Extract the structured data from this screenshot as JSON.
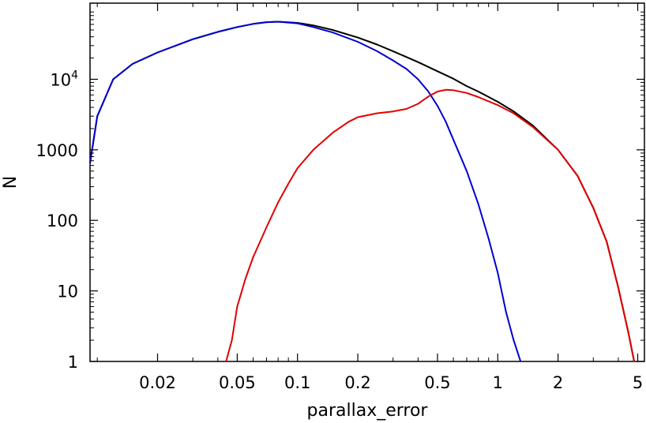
{
  "chart_data": {
    "type": "line",
    "xlabel": "parallax_error",
    "ylabel": "N",
    "xscale": "log",
    "yscale": "log",
    "xlim": [
      0.0092,
      5.4
    ],
    "ylim": [
      1,
      120000
    ],
    "grid": false,
    "legend": "none",
    "x_ticks": [
      {
        "value": 0.02,
        "label": "0.02"
      },
      {
        "value": 0.05,
        "label": "0.05"
      },
      {
        "value": 0.1,
        "label": "0.1"
      },
      {
        "value": 0.2,
        "label": "0.2"
      },
      {
        "value": 0.5,
        "label": "0.5"
      },
      {
        "value": 1,
        "label": "1"
      },
      {
        "value": 2,
        "label": "2"
      },
      {
        "value": 5,
        "label": "5"
      }
    ],
    "y_ticks": [
      {
        "value": 1,
        "label": "1"
      },
      {
        "value": 10,
        "label": "10"
      },
      {
        "value": 100,
        "label": "100"
      },
      {
        "value": 1000,
        "label": "1000"
      },
      {
        "value": 10000,
        "label": "10",
        "sup": "4"
      }
    ],
    "series": [
      {
        "color": "#000000",
        "points": [
          [
            0.0092,
            650
          ],
          [
            0.01,
            3000
          ],
          [
            0.012,
            10000
          ],
          [
            0.015,
            16500
          ],
          [
            0.02,
            24000
          ],
          [
            0.03,
            37000
          ],
          [
            0.04,
            47000
          ],
          [
            0.05,
            55000
          ],
          [
            0.06,
            61000
          ],
          [
            0.07,
            64500
          ],
          [
            0.08,
            65500
          ],
          [
            0.1,
            63000
          ],
          [
            0.12,
            58000
          ],
          [
            0.15,
            50000
          ],
          [
            0.2,
            39000
          ],
          [
            0.25,
            31000
          ],
          [
            0.3,
            25000
          ],
          [
            0.4,
            17500
          ],
          [
            0.5,
            13000
          ],
          [
            0.6,
            10200
          ],
          [
            0.7,
            8000
          ],
          [
            0.8,
            6700
          ],
          [
            1.0,
            4800
          ],
          [
            1.2,
            3500
          ],
          [
            1.5,
            2200
          ],
          [
            2.0,
            1000
          ],
          [
            2.5,
            430
          ],
          [
            3.0,
            150
          ],
          [
            3.5,
            50
          ],
          [
            4.0,
            11
          ],
          [
            4.5,
            2.5
          ],
          [
            4.8,
            1
          ]
        ]
      },
      {
        "color": "#0000d0",
        "points": [
          [
            0.0092,
            650
          ],
          [
            0.01,
            3000
          ],
          [
            0.012,
            10000
          ],
          [
            0.015,
            16500
          ],
          [
            0.02,
            24000
          ],
          [
            0.03,
            37000
          ],
          [
            0.04,
            47000
          ],
          [
            0.05,
            55000
          ],
          [
            0.06,
            61000
          ],
          [
            0.07,
            64500
          ],
          [
            0.08,
            65500
          ],
          [
            0.1,
            62000
          ],
          [
            0.12,
            55000
          ],
          [
            0.15,
            46000
          ],
          [
            0.2,
            34000
          ],
          [
            0.25,
            25000
          ],
          [
            0.3,
            18500
          ],
          [
            0.35,
            14000
          ],
          [
            0.4,
            10000
          ],
          [
            0.45,
            6700
          ],
          [
            0.5,
            4200
          ],
          [
            0.55,
            2500
          ],
          [
            0.6,
            1400
          ],
          [
            0.7,
            500
          ],
          [
            0.8,
            170
          ],
          [
            0.9,
            55
          ],
          [
            1.0,
            18
          ],
          [
            1.1,
            5
          ],
          [
            1.2,
            2
          ],
          [
            1.3,
            1
          ]
        ]
      },
      {
        "color": "#e00000",
        "points": [
          [
            0.044,
            1
          ],
          [
            0.047,
            2
          ],
          [
            0.05,
            6
          ],
          [
            0.055,
            15
          ],
          [
            0.06,
            30
          ],
          [
            0.07,
            80
          ],
          [
            0.08,
            180
          ],
          [
            0.09,
            330
          ],
          [
            0.1,
            550
          ],
          [
            0.12,
            1000
          ],
          [
            0.15,
            1750
          ],
          [
            0.18,
            2500
          ],
          [
            0.2,
            2900
          ],
          [
            0.25,
            3300
          ],
          [
            0.3,
            3500
          ],
          [
            0.35,
            3800
          ],
          [
            0.4,
            4500
          ],
          [
            0.45,
            5700
          ],
          [
            0.5,
            6700
          ],
          [
            0.55,
            7100
          ],
          [
            0.6,
            7000
          ],
          [
            0.7,
            6400
          ],
          [
            0.8,
            5600
          ],
          [
            1.0,
            4300
          ],
          [
            1.2,
            3300
          ],
          [
            1.5,
            2100
          ],
          [
            2.0,
            1000
          ],
          [
            2.5,
            430
          ],
          [
            3.0,
            150
          ],
          [
            3.5,
            50
          ],
          [
            4.0,
            11
          ],
          [
            4.5,
            2.5
          ],
          [
            4.8,
            1
          ]
        ]
      }
    ]
  }
}
